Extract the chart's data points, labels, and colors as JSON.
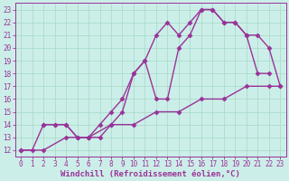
{
  "bg_color": "#cceee8",
  "grid_color": "#aaddcc",
  "line_color": "#993399",
  "line_width": 1.0,
  "marker": "D",
  "marker_size": 2.5,
  "xlim": [
    -0.5,
    23.5
  ],
  "ylim": [
    11.5,
    23.5
  ],
  "xlabel": "Windchill (Refroidissement éolien,°C)",
  "xlabel_fontsize": 6.5,
  "xticks": [
    0,
    1,
    2,
    3,
    4,
    5,
    6,
    7,
    8,
    9,
    10,
    11,
    12,
    13,
    14,
    15,
    16,
    17,
    18,
    19,
    20,
    21,
    22,
    23
  ],
  "yticks": [
    12,
    13,
    14,
    15,
    16,
    17,
    18,
    19,
    20,
    21,
    22,
    23
  ],
  "tick_fontsize": 5.5,
  "line1_x": [
    0,
    1,
    2,
    3,
    4,
    5,
    6,
    7,
    8,
    9,
    10,
    11,
    12,
    13,
    14,
    15,
    16,
    17,
    18,
    19,
    20,
    21,
    22
  ],
  "line1_y": [
    12,
    12,
    14,
    14,
    14,
    13,
    13,
    14,
    15,
    16,
    18,
    19,
    21,
    22,
    21,
    22,
    23,
    23,
    22,
    22,
    21,
    18,
    18
  ],
  "line2_x": [
    2,
    3,
    4,
    5,
    6,
    7,
    8,
    9,
    10,
    11,
    12,
    13,
    14,
    15,
    16,
    17,
    18,
    19,
    20,
    21,
    22,
    23
  ],
  "line2_y": [
    14,
    14,
    14,
    13,
    13,
    13,
    14,
    15,
    18,
    19,
    16,
    16,
    20,
    21,
    23,
    23,
    22,
    22,
    21,
    21,
    20,
    17
  ],
  "line3_x": [
    0,
    2,
    4,
    6,
    8,
    10,
    12,
    14,
    16,
    18,
    20,
    22,
    23
  ],
  "line3_y": [
    12,
    12,
    13,
    13,
    14,
    14,
    15,
    15,
    16,
    16,
    17,
    17,
    17
  ]
}
